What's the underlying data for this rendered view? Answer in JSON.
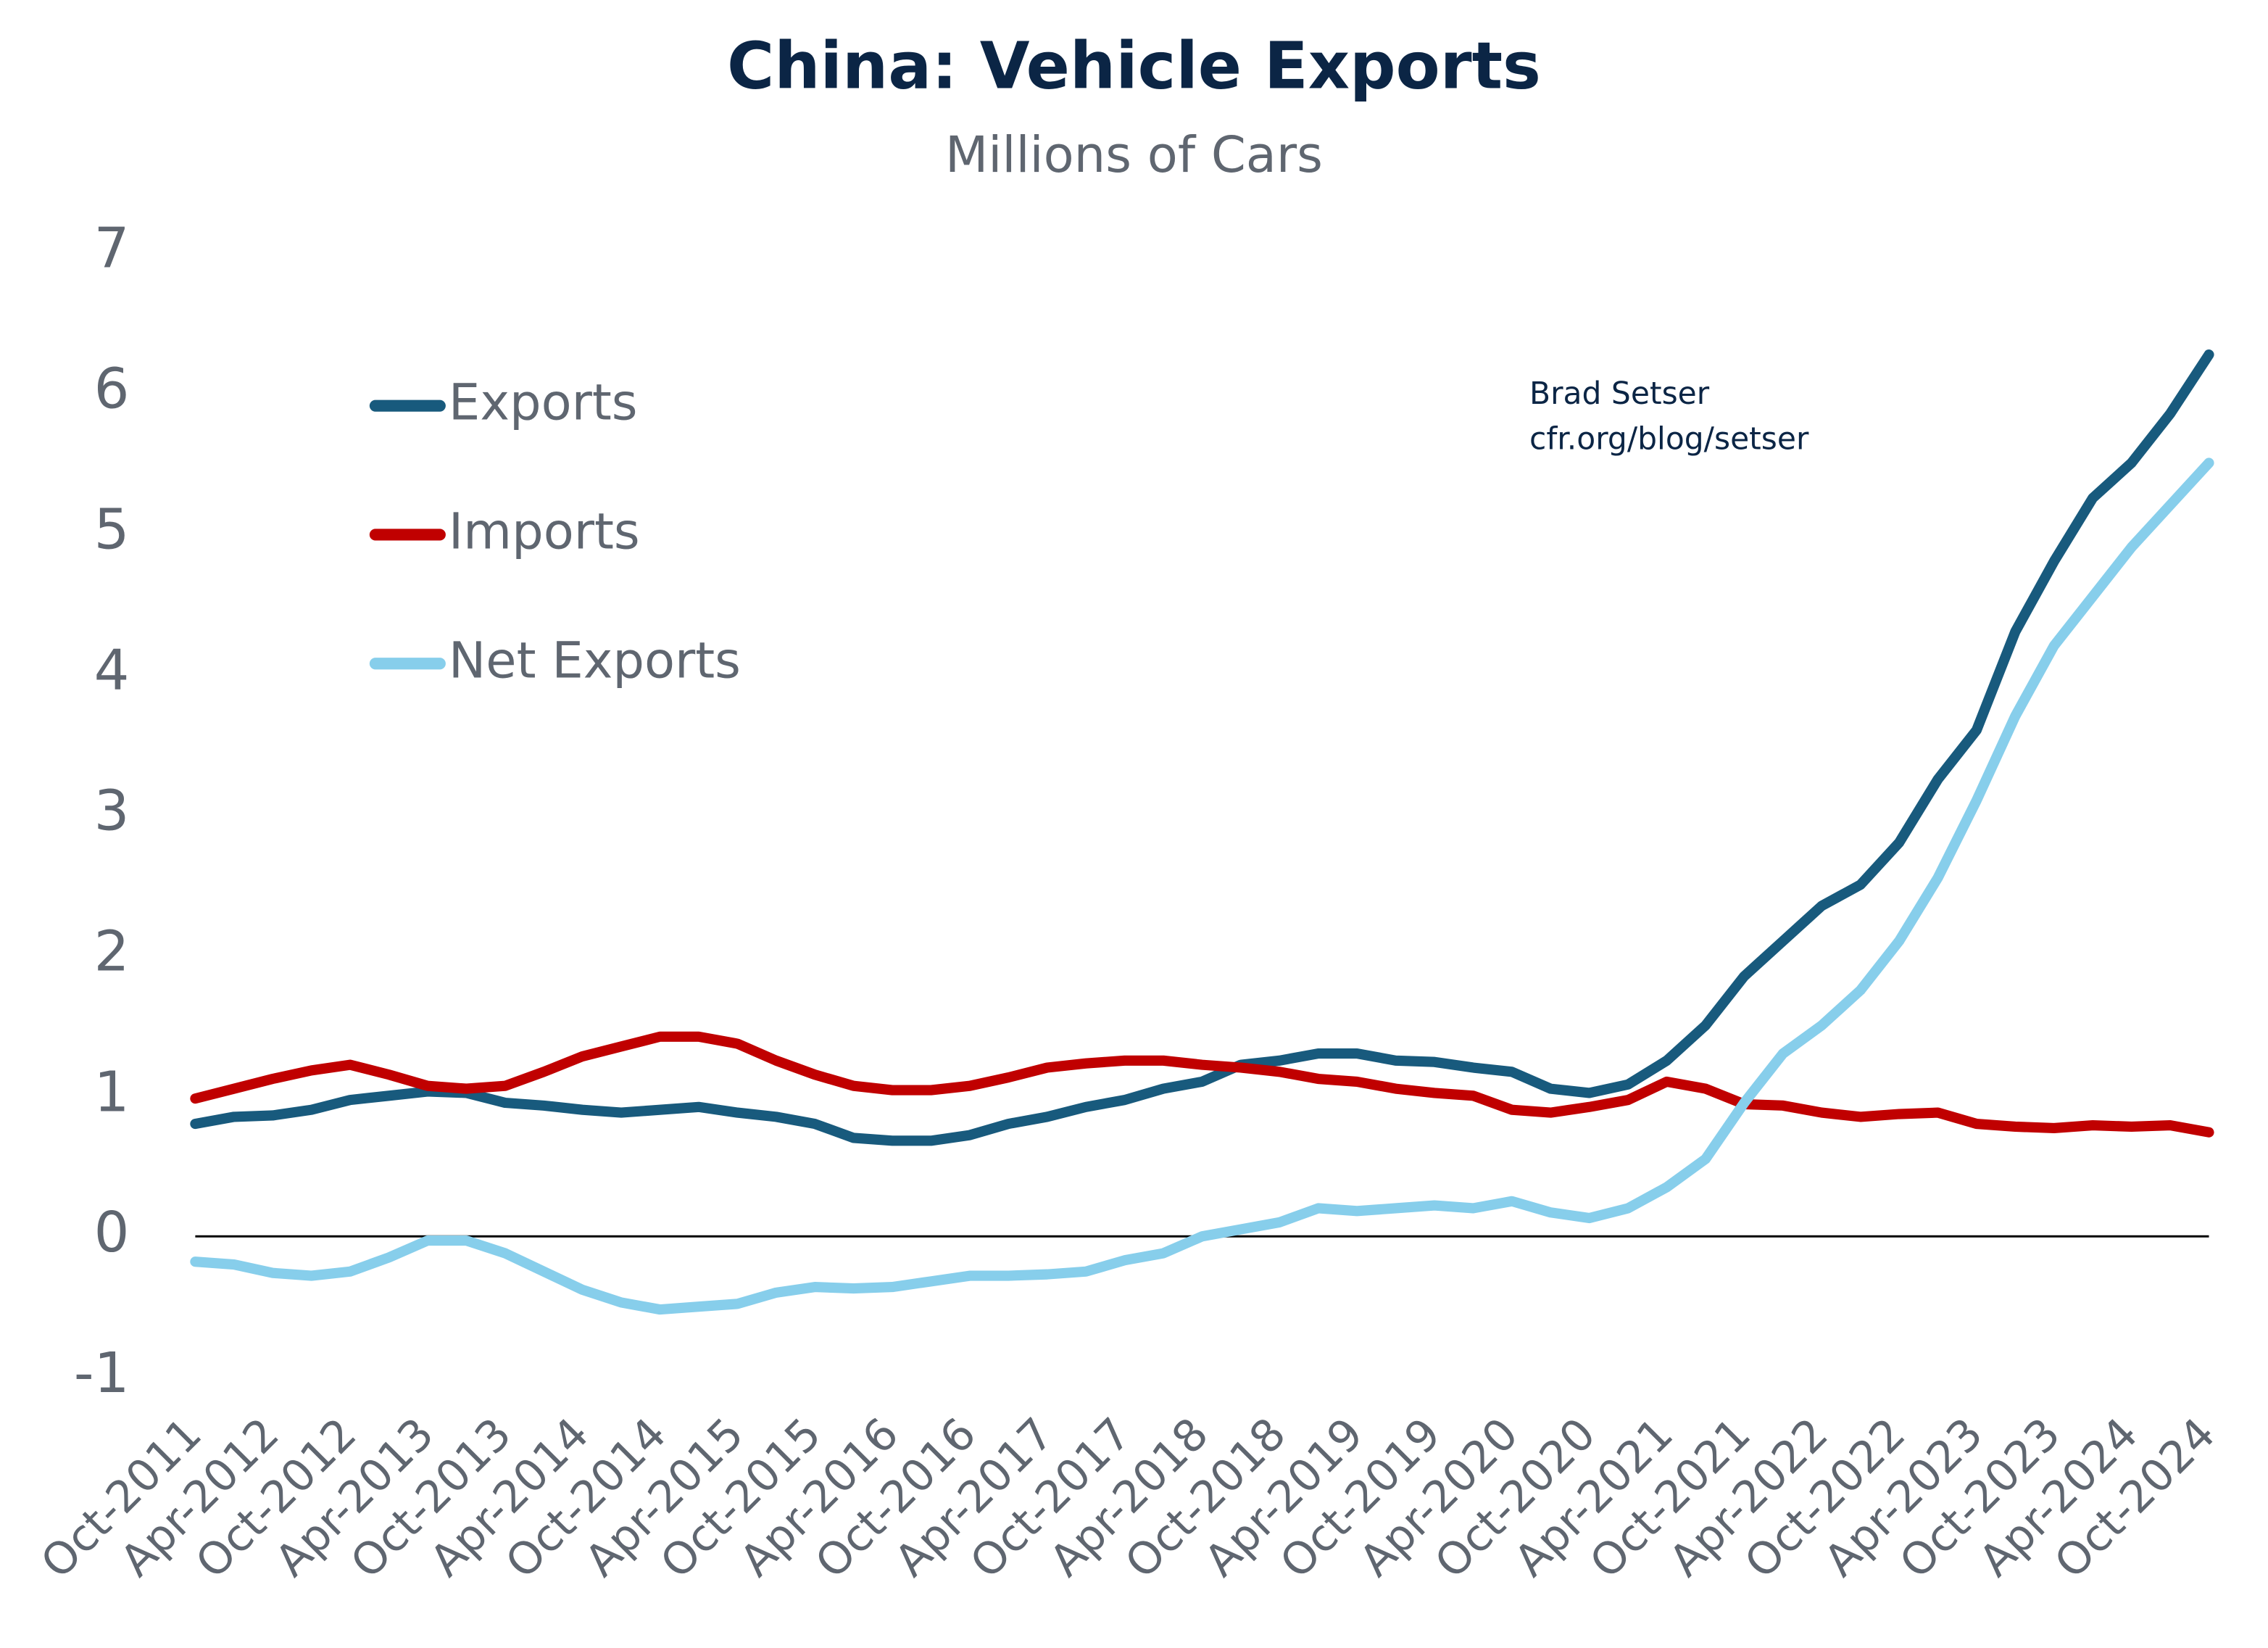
{
  "chart_data": {
    "type": "line",
    "title": "China: Vehicle Exports",
    "subtitle": "Millions of Cars",
    "annotation": [
      "Brad Setser",
      "cfr.org/blog/setser"
    ],
    "categories": [
      "Oct-2011",
      null,
      "Apr-2012",
      null,
      "Oct-2012",
      null,
      "Apr-2013",
      null,
      "Oct-2013",
      null,
      "Apr-2014",
      null,
      "Oct-2014",
      null,
      "Apr-2015",
      null,
      "Oct-2015",
      null,
      "Apr-2016",
      null,
      "Oct-2016",
      null,
      "Apr-2017",
      null,
      "Oct-2017",
      null,
      "Apr-2018",
      null,
      "Oct-2018",
      null,
      "Apr-2019",
      null,
      "Oct-2019",
      null,
      "Apr-2020",
      null,
      "Oct-2020",
      null,
      "Apr-2021",
      null,
      "Oct-2021",
      null,
      "Apr-2022",
      null,
      "Oct-2022",
      null,
      "Apr-2023",
      null,
      "Oct-2023",
      null,
      "Apr-2024",
      null,
      "Oct-2024"
    ],
    "series": [
      {
        "name": "Exports",
        "color": "#185a7d",
        "values": [
          0.8,
          0.85,
          0.86,
          0.9,
          0.97,
          1.0,
          1.03,
          1.02,
          0.95,
          0.93,
          0.9,
          0.88,
          0.9,
          0.92,
          0.88,
          0.85,
          0.8,
          0.7,
          0.68,
          0.68,
          0.72,
          0.8,
          0.85,
          0.92,
          0.97,
          1.05,
          1.1,
          1.22,
          1.25,
          1.3,
          1.3,
          1.25,
          1.24,
          1.2,
          1.17,
          1.05,
          1.02,
          1.08,
          1.25,
          1.5,
          1.85,
          2.1,
          2.35,
          2.5,
          2.8,
          3.25,
          3.6,
          4.3,
          4.8,
          5.25,
          5.5,
          5.85,
          6.27
        ]
      },
      {
        "name": "Imports",
        "color": "#c00000",
        "values": [
          0.98,
          1.05,
          1.12,
          1.18,
          1.22,
          1.15,
          1.07,
          1.05,
          1.07,
          1.17,
          1.28,
          1.35,
          1.42,
          1.42,
          1.37,
          1.25,
          1.15,
          1.07,
          1.04,
          1.04,
          1.07,
          1.13,
          1.2,
          1.23,
          1.25,
          1.25,
          1.22,
          1.2,
          1.17,
          1.12,
          1.1,
          1.05,
          1.02,
          1.0,
          0.9,
          0.88,
          0.92,
          0.97,
          1.1,
          1.05,
          0.94,
          0.93,
          0.88,
          0.85,
          0.87,
          0.88,
          0.8,
          0.78,
          0.77,
          0.79,
          0.78,
          0.79,
          0.74
        ]
      },
      {
        "name": "Net Exports",
        "color": "#87ceeb",
        "values": [
          -0.18,
          -0.2,
          -0.26,
          -0.28,
          -0.25,
          -0.15,
          -0.03,
          -0.03,
          -0.12,
          -0.25,
          -0.38,
          -0.47,
          -0.52,
          -0.5,
          -0.48,
          -0.4,
          -0.36,
          -0.37,
          -0.36,
          -0.32,
          -0.28,
          -0.28,
          -0.27,
          -0.25,
          -0.17,
          -0.12,
          0.0,
          0.05,
          0.1,
          0.2,
          0.18,
          0.2,
          0.22,
          0.2,
          0.25,
          0.17,
          0.13,
          0.2,
          0.35,
          0.55,
          0.95,
          1.3,
          1.5,
          1.75,
          2.1,
          2.55,
          3.1,
          3.7,
          4.2,
          4.55,
          4.9,
          5.2,
          5.5
        ]
      }
    ],
    "ylim": [
      -1,
      7
    ],
    "yticks": [
      -1,
      0,
      1,
      2,
      3,
      4,
      5,
      6,
      7
    ],
    "zero_line": true,
    "legend": "top-left"
  }
}
